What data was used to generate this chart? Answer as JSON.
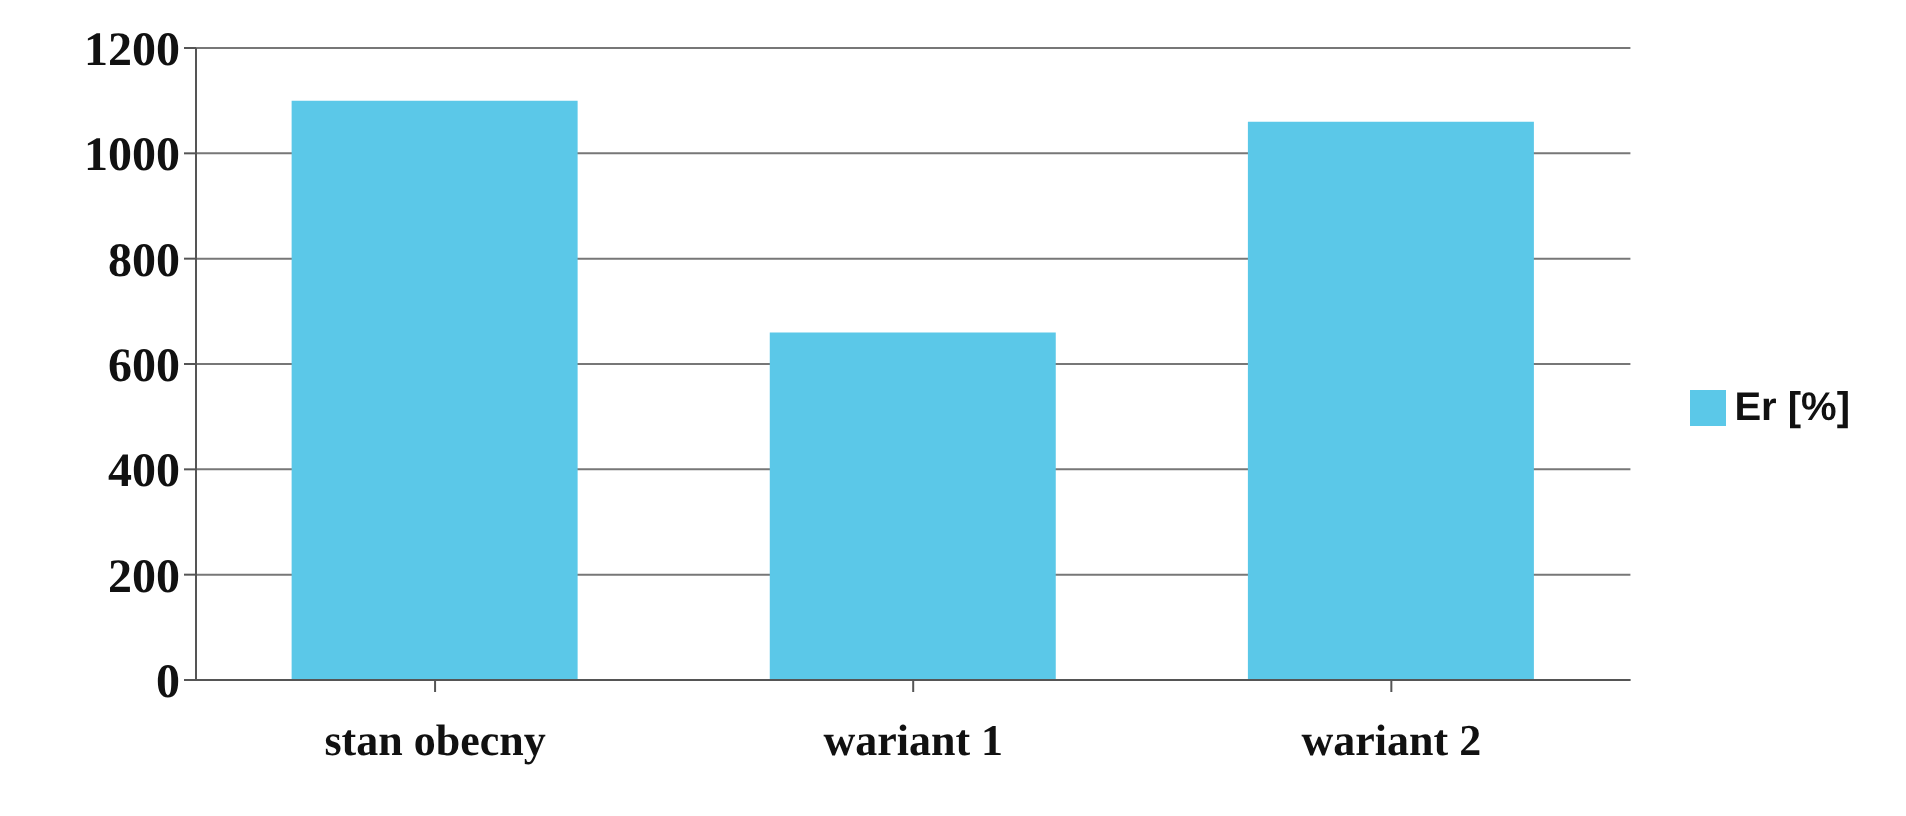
{
  "chart_data": {
    "type": "bar",
    "categories": [
      "stan obecny",
      "wariant 1",
      "wariant 2"
    ],
    "series": [
      {
        "name": "Er [%]",
        "color": "#5bc8e8",
        "values": [
          1100,
          660,
          1060
        ]
      }
    ],
    "ylim": [
      0,
      1200
    ],
    "yticks": [
      0,
      200,
      400,
      600,
      800,
      1000,
      1200
    ],
    "grid": "y",
    "legend": "right"
  }
}
